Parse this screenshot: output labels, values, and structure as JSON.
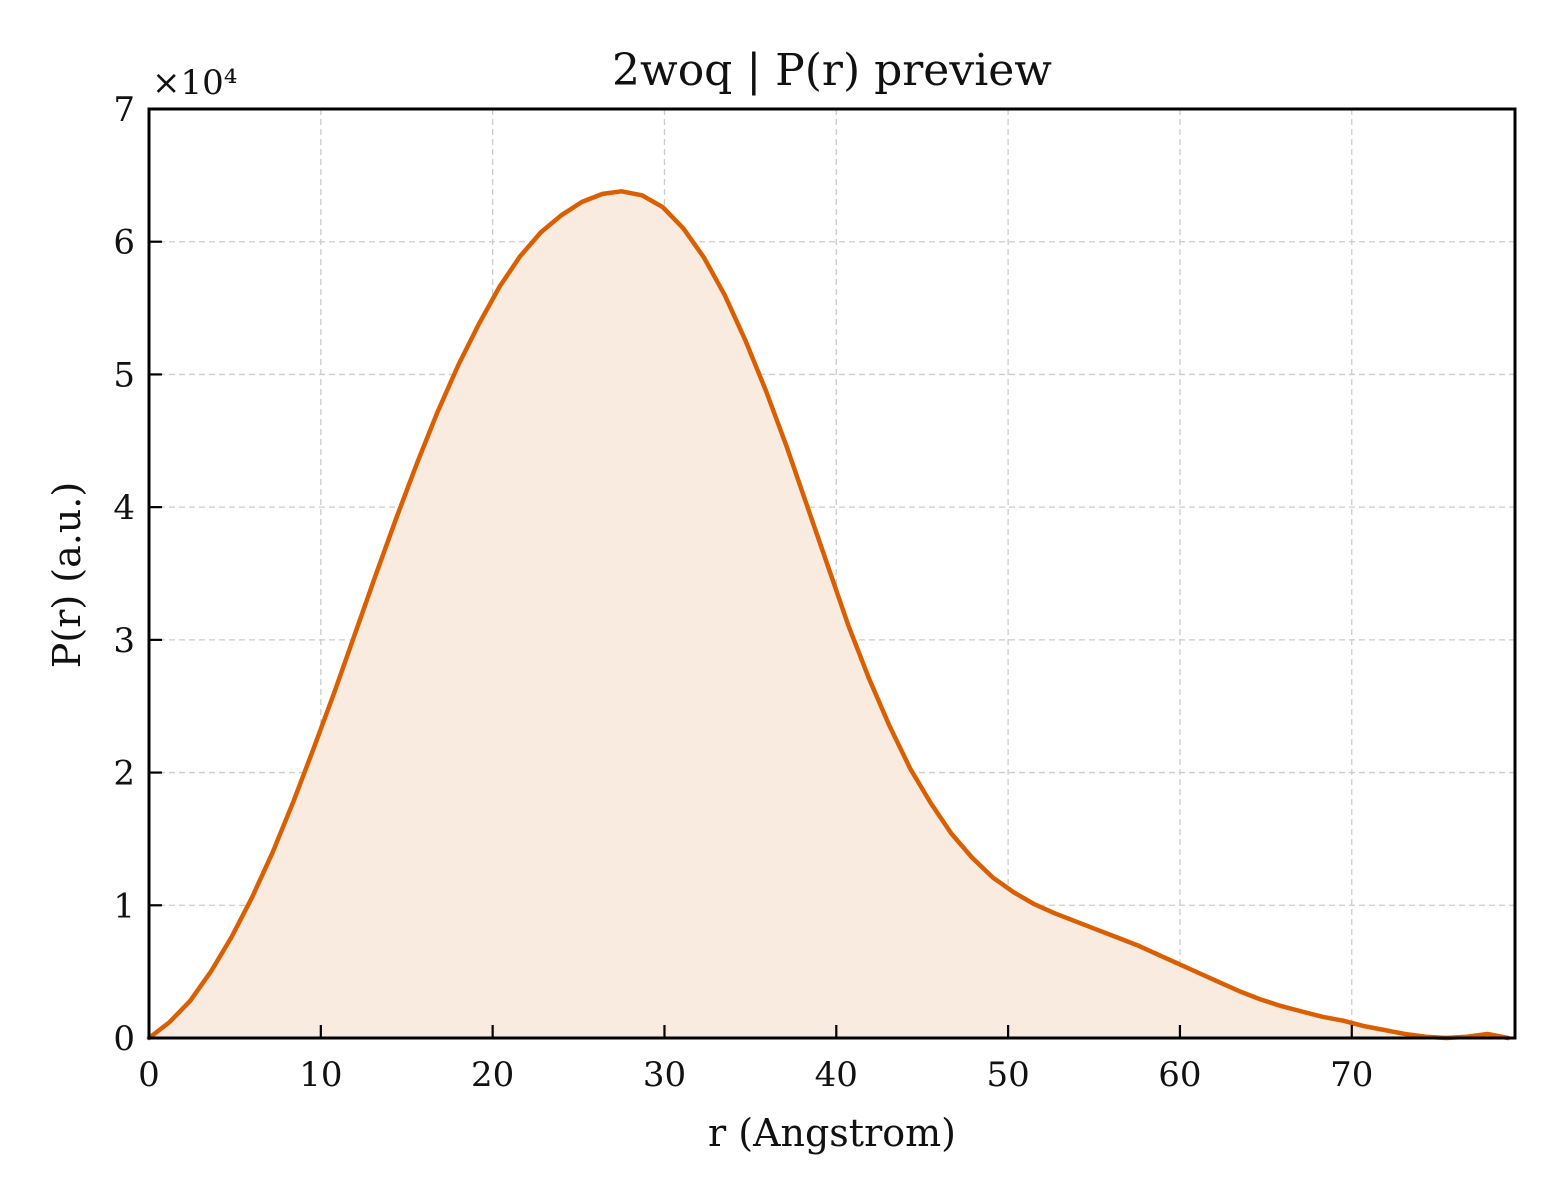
{
  "chart_data": {
    "type": "area",
    "title": "2woq | P(r) preview",
    "xlabel": "r (Angstrom)",
    "ylabel": "P(r) (a.u.)",
    "y_multiplier_label": "×10⁴",
    "xlim": [
      0,
      79.5
    ],
    "ylim": [
      0,
      70000
    ],
    "x_ticks": [
      0,
      10,
      20,
      30,
      40,
      50,
      60,
      70
    ],
    "y_ticks": [
      0,
      10000,
      20000,
      30000,
      40000,
      50000,
      60000,
      70000
    ],
    "x_tick_labels": [
      "0",
      "10",
      "20",
      "30",
      "40",
      "50",
      "60",
      "70"
    ],
    "y_tick_labels": [
      "0",
      "1",
      "2",
      "3",
      "4",
      "5",
      "6",
      "7"
    ],
    "grid": true,
    "colors": {
      "line": "#d95f02",
      "fill": "#f9ebe0"
    },
    "series": [
      {
        "x": [
          0,
          1.2,
          2.4,
          3.6,
          4.8,
          6.0,
          7.2,
          8.4,
          9.6,
          10.8,
          12.0,
          13.2,
          14.4,
          15.6,
          16.8,
          18.0,
          19.2,
          20.4,
          21.6,
          22.8,
          24.0,
          25.2,
          26.4,
          27.5,
          28.7,
          29.9,
          31.1,
          32.3,
          33.5,
          34.7,
          35.9,
          37.1,
          38.3,
          39.5,
          40.7,
          41.9,
          43.1,
          44.3,
          45.5,
          46.7,
          47.9,
          49.1,
          50.3,
          51.5,
          52.7,
          53.9,
          55.1,
          56.3,
          57.5,
          58.7,
          59.9,
          61.1,
          62.3,
          63.5,
          64.7,
          65.9,
          67.1,
          68.3,
          69.5,
          70.7,
          71.9,
          73.1,
          74.3,
          75.5,
          76.7,
          77.9,
          79.1
        ],
        "values": [
          0,
          1200,
          2800,
          5000,
          7600,
          10600,
          14000,
          17800,
          21900,
          26100,
          30500,
          34900,
          39200,
          43300,
          47200,
          50700,
          53800,
          56600,
          58900,
          60700,
          62000,
          63000,
          63600,
          63800,
          63500,
          62600,
          61000,
          58800,
          56000,
          52600,
          48800,
          44600,
          40100,
          35600,
          31100,
          27100,
          23500,
          20300,
          17700,
          15400,
          13600,
          12100,
          11000,
          10100,
          9400,
          8800,
          8200,
          7600,
          7000,
          6300,
          5600,
          4900,
          4200,
          3500,
          2900,
          2400,
          2000,
          1600,
          1300,
          900,
          600,
          300,
          100,
          0,
          100,
          300,
          0
        ]
      }
    ]
  }
}
